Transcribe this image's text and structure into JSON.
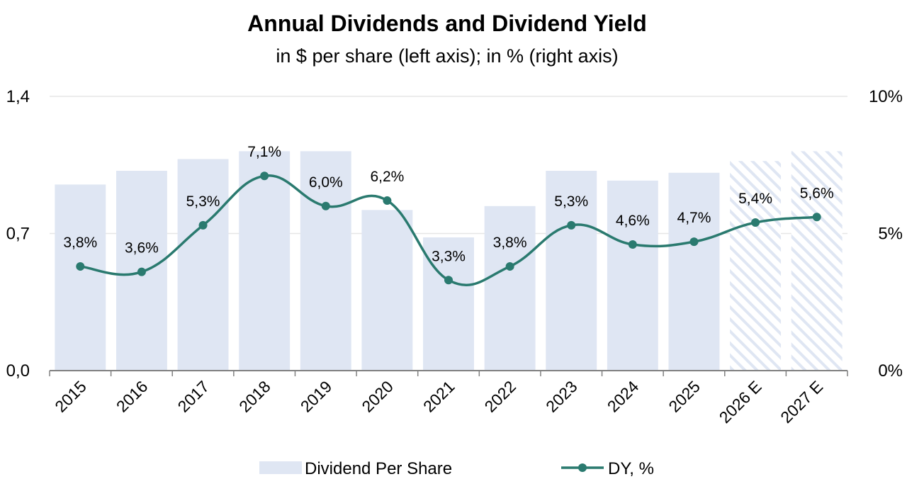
{
  "chart_data": {
    "type": "bar+line",
    "title": "Annual Dividends and Dividend Yield",
    "subtitle": "in $ per share (left axis); in % (right axis)",
    "categories": [
      "2015",
      "2016",
      "2017",
      "2018",
      "2019",
      "2020",
      "2021",
      "2022",
      "2023",
      "2024",
      "2025",
      "2026 E",
      "2027 E"
    ],
    "forecast": [
      false,
      false,
      false,
      false,
      false,
      false,
      false,
      false,
      false,
      false,
      false,
      true,
      true
    ],
    "series": [
      {
        "name": "Dividend Per Share",
        "type": "bar",
        "axis": "left",
        "color": "#dfe6f3",
        "values": [
          0.95,
          1.02,
          1.08,
          1.12,
          1.12,
          0.82,
          0.68,
          0.84,
          1.02,
          0.97,
          1.01,
          1.07,
          1.12
        ]
      },
      {
        "name": "DY, %",
        "type": "line",
        "axis": "right",
        "color": "#2a7a6f",
        "values": [
          3.8,
          3.6,
          5.3,
          7.1,
          6.0,
          6.2,
          3.3,
          3.8,
          5.3,
          4.6,
          4.7,
          5.4,
          5.6
        ],
        "labels": [
          "3,8%",
          "3,6%",
          "5,3%",
          "7,1%",
          "6,0%",
          "6,2%",
          "3,3%",
          "3,8%",
          "5,3%",
          "4,6%",
          "4,7%",
          "5,4%",
          "5,6%"
        ]
      }
    ],
    "left_axis": {
      "ylim": [
        0,
        1.4
      ],
      "ticks": [
        "0,0",
        "0,7",
        "1,4"
      ]
    },
    "right_axis": {
      "ylim": [
        0,
        10
      ],
      "ticks": [
        "0%",
        "5%",
        "10%"
      ]
    },
    "grid": true,
    "legend_position": "bottom-center"
  }
}
